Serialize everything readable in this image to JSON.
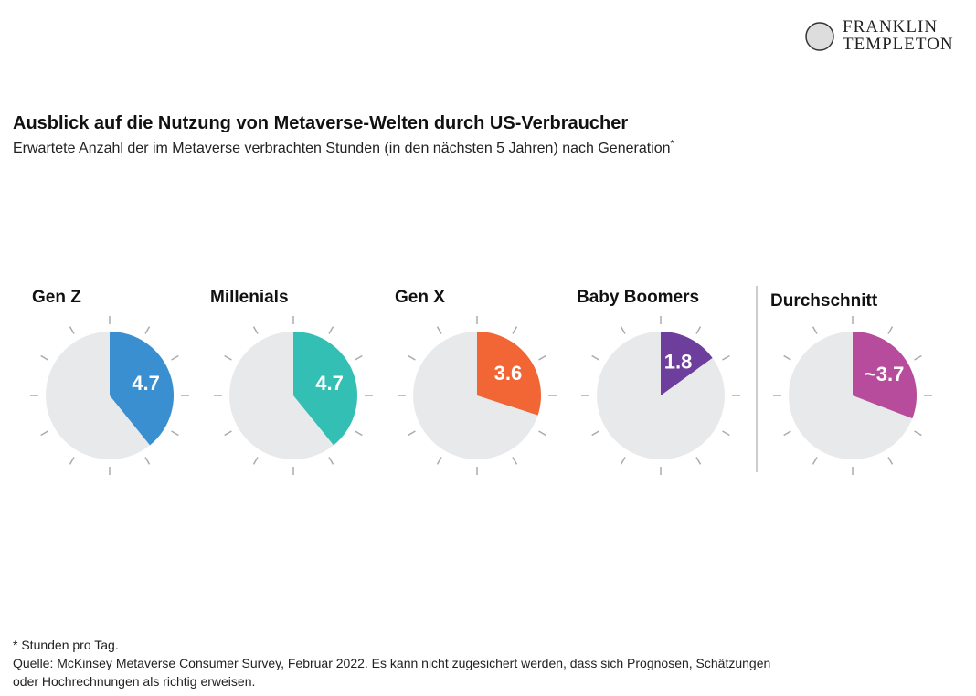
{
  "header": {
    "logo": [
      "FRANKLIN",
      "TEMPLETON"
    ],
    "title": "Ausblick auf die Nutzung von Metaverse-Welten durch US-Verbraucher",
    "subtitle": "Erwartete Anzahl der im Metaverse verbrachten Stunden (in den nächsten 5 Jahren) nach Generation",
    "subtitle_mark": "*"
  },
  "chart_data": [
    {
      "type": "pie",
      "title": "Gen Z",
      "values": [
        4.7
      ],
      "color": "#3a8fd0",
      "xlim": [
        0,
        12
      ],
      "xticks": [
        0,
        1,
        2,
        3,
        4,
        5,
        6,
        7,
        8,
        9,
        10,
        11
      ]
    },
    {
      "type": "pie",
      "title": "Millenials",
      "values": [
        4.7
      ],
      "color": "#33bfb3",
      "xlim": [
        0,
        12
      ],
      "xticks": [
        0,
        1,
        2,
        3,
        4,
        5,
        6,
        7,
        8,
        9,
        10,
        11
      ]
    },
    {
      "type": "pie",
      "title": "Gen X",
      "values": [
        3.6
      ],
      "color": "#f26535",
      "xlim": [
        0,
        12
      ],
      "xticks": [
        0,
        1,
        2,
        3,
        4,
        5,
        6,
        7,
        8,
        9,
        10,
        11
      ]
    },
    {
      "type": "pie",
      "title": "Baby Boomers",
      "values": [
        1.8
      ],
      "color": "#6d3e9c",
      "xlim": [
        0,
        12
      ],
      "xticks": [
        0,
        1,
        2,
        3,
        4,
        5,
        6,
        7,
        8,
        9,
        10,
        11
      ]
    },
    {
      "type": "pie",
      "title": "Durchschnitt",
      "values": [
        3.7
      ],
      "value_labels": [
        "~3.7"
      ],
      "color": "#b84c9c",
      "xlim": [
        0,
        12
      ],
      "xticks": [
        0,
        1,
        2,
        3,
        4,
        5,
        6,
        7,
        8,
        9,
        10,
        11
      ]
    }
  ],
  "footnotes": [
    "* Stunden pro Tag.",
    "Quelle: McKinsey Metaverse Consumer Survey, Februar 2022. Es kann nicht zugesichert werden, dass sich Prognosen, Schätzungen",
    "oder Hochrechnungen als richtig erweisen."
  ]
}
